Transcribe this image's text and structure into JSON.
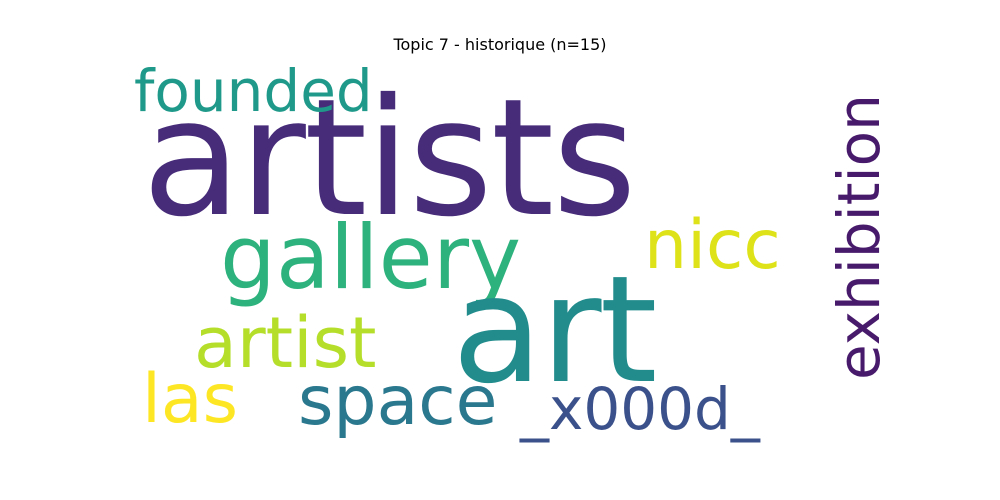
{
  "title": "Topic 7 - historique (n=15)",
  "words": {
    "artists": {
      "text": "artists",
      "color": "#472c7a"
    },
    "art": {
      "text": "art",
      "color": "#228c8d"
    },
    "gallery": {
      "text": "gallery",
      "color": "#2db27d"
    },
    "nicc": {
      "text": "nicc",
      "color": "#dde318"
    },
    "founded": {
      "text": "founded",
      "color": "#1f9a8a"
    },
    "exhibition": {
      "text": "exhibition",
      "color": "#481a6c"
    },
    "artist": {
      "text": "artist",
      "color": "#b5de2b"
    },
    "las": {
      "text": "las",
      "color": "#fde725"
    },
    "space": {
      "text": "space",
      "color": "#2a788e"
    },
    "x000d": {
      "text": "_x000d_",
      "color": "#3b518b"
    }
  }
}
